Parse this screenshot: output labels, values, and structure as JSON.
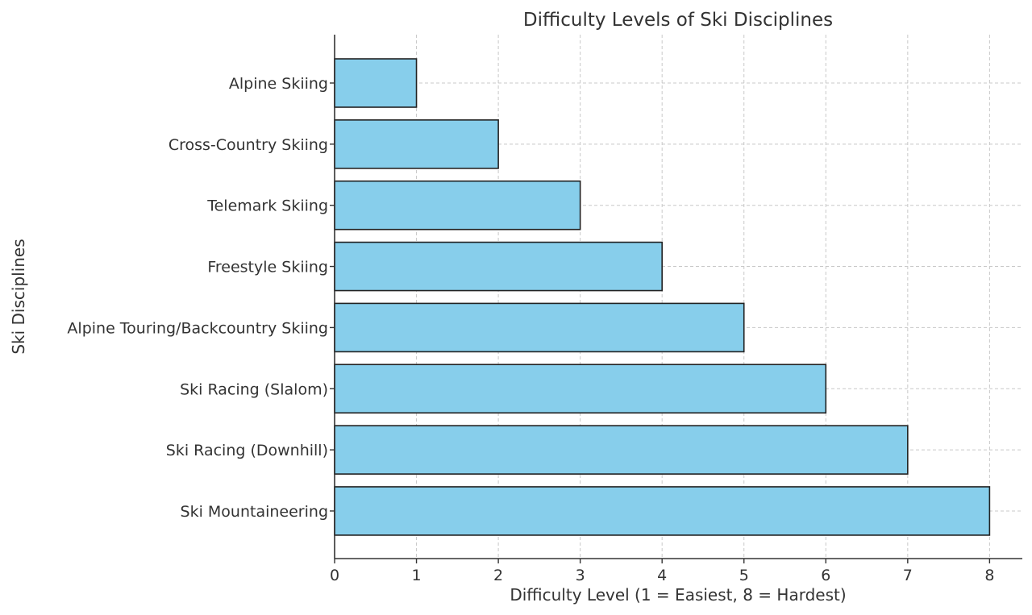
{
  "chart_data": {
    "type": "bar",
    "orientation": "horizontal",
    "title": "Difficulty Levels of Ski Disciplines",
    "xlabel": "Difficulty Level (1 = Easiest, 8 = Hardest)",
    "ylabel": "Ski Disciplines",
    "categories": [
      "Alpine Skiing",
      "Cross-Country Skiing",
      "Telemark Skiing",
      "Freestyle Skiing",
      "Alpine Touring/Backcountry Skiing",
      "Ski Racing (Slalom)",
      "Ski Racing (Downhill)",
      "Ski Mountaineering"
    ],
    "values": [
      1,
      2,
      3,
      4,
      5,
      6,
      7,
      8
    ],
    "xlim": [
      0,
      8.4
    ],
    "xticks": [
      0,
      1,
      2,
      3,
      4,
      5,
      6,
      7,
      8
    ],
    "grid": true,
    "bar_color": "#87ceeb",
    "edge_color": "#222222"
  }
}
